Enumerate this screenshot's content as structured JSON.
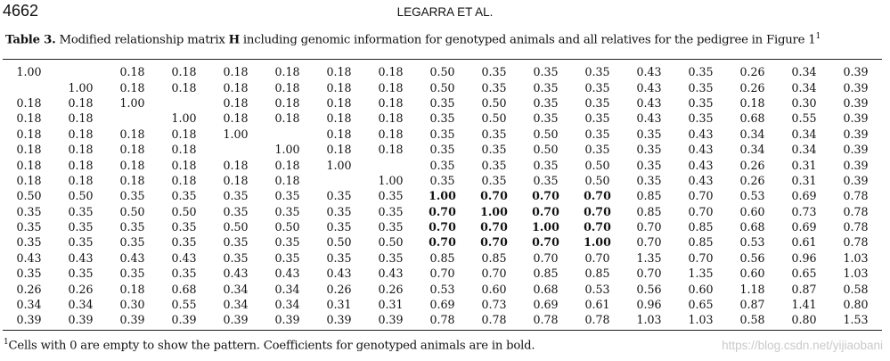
{
  "header": {
    "page_number": "4662",
    "running_head": "LEGARRA ET AL."
  },
  "caption": {
    "label": "Table 3.",
    "text_before": " Modified relationship matrix ",
    "matrix_symbol": "H",
    "text_after": " including genomic information for genotyped animals and all relatives for the pedigree in Figure 1",
    "footnote_mark": "1"
  },
  "matrix": {
    "rows": [
      [
        "1.00",
        "",
        "0.18",
        "0.18",
        "0.18",
        "0.18",
        "0.18",
        "0.18",
        "0.50",
        "0.35",
        "0.35",
        "0.35",
        "0.43",
        "0.35",
        "0.26",
        "0.34",
        "0.39"
      ],
      [
        "",
        "1.00",
        "0.18",
        "0.18",
        "0.18",
        "0.18",
        "0.18",
        "0.18",
        "0.50",
        "0.35",
        "0.35",
        "0.35",
        "0.43",
        "0.35",
        "0.26",
        "0.34",
        "0.39"
      ],
      [
        "0.18",
        "0.18",
        "1.00",
        "",
        "0.18",
        "0.18",
        "0.18",
        "0.18",
        "0.35",
        "0.50",
        "0.35",
        "0.35",
        "0.43",
        "0.35",
        "0.18",
        "0.30",
        "0.39"
      ],
      [
        "0.18",
        "0.18",
        "",
        "1.00",
        "0.18",
        "0.18",
        "0.18",
        "0.18",
        "0.35",
        "0.50",
        "0.35",
        "0.35",
        "0.43",
        "0.35",
        "0.68",
        "0.55",
        "0.39"
      ],
      [
        "0.18",
        "0.18",
        "0.18",
        "0.18",
        "1.00",
        "",
        "0.18",
        "0.18",
        "0.35",
        "0.35",
        "0.50",
        "0.35",
        "0.35",
        "0.43",
        "0.34",
        "0.34",
        "0.39"
      ],
      [
        "0.18",
        "0.18",
        "0.18",
        "0.18",
        "",
        "1.00",
        "0.18",
        "0.18",
        "0.35",
        "0.35",
        "0.50",
        "0.35",
        "0.35",
        "0.43",
        "0.34",
        "0.34",
        "0.39"
      ],
      [
        "0.18",
        "0.18",
        "0.18",
        "0.18",
        "0.18",
        "0.18",
        "1.00",
        "",
        "0.35",
        "0.35",
        "0.35",
        "0.50",
        "0.35",
        "0.43",
        "0.26",
        "0.31",
        "0.39"
      ],
      [
        "0.18",
        "0.18",
        "0.18",
        "0.18",
        "0.18",
        "0.18",
        "",
        "1.00",
        "0.35",
        "0.35",
        "0.35",
        "0.50",
        "0.35",
        "0.43",
        "0.26",
        "0.31",
        "0.39"
      ],
      [
        "0.50",
        "0.50",
        "0.35",
        "0.35",
        "0.35",
        "0.35",
        "0.35",
        "0.35",
        "1.00",
        "0.70",
        "0.70",
        "0.70",
        "0.85",
        "0.70",
        "0.53",
        "0.69",
        "0.78"
      ],
      [
        "0.35",
        "0.35",
        "0.50",
        "0.50",
        "0.35",
        "0.35",
        "0.35",
        "0.35",
        "0.70",
        "1.00",
        "0.70",
        "0.70",
        "0.85",
        "0.70",
        "0.60",
        "0.73",
        "0.78"
      ],
      [
        "0.35",
        "0.35",
        "0.35",
        "0.35",
        "0.50",
        "0.50",
        "0.35",
        "0.35",
        "0.70",
        "0.70",
        "1.00",
        "0.70",
        "0.70",
        "0.85",
        "0.68",
        "0.69",
        "0.78"
      ],
      [
        "0.35",
        "0.35",
        "0.35",
        "0.35",
        "0.35",
        "0.35",
        "0.50",
        "0.50",
        "0.70",
        "0.70",
        "0.70",
        "1.00",
        "0.70",
        "0.85",
        "0.53",
        "0.61",
        "0.78"
      ],
      [
        "0.43",
        "0.43",
        "0.43",
        "0.43",
        "0.35",
        "0.35",
        "0.35",
        "0.35",
        "0.85",
        "0.85",
        "0.70",
        "0.70",
        "1.35",
        "0.70",
        "0.56",
        "0.96",
        "1.03"
      ],
      [
        "0.35",
        "0.35",
        "0.35",
        "0.35",
        "0.43",
        "0.43",
        "0.43",
        "0.43",
        "0.70",
        "0.70",
        "0.85",
        "0.85",
        "0.70",
        "1.35",
        "0.60",
        "0.65",
        "1.03"
      ],
      [
        "0.26",
        "0.26",
        "0.18",
        "0.68",
        "0.34",
        "0.34",
        "0.26",
        "0.26",
        "0.53",
        "0.60",
        "0.68",
        "0.53",
        "0.56",
        "0.60",
        "1.18",
        "0.87",
        "0.58"
      ],
      [
        "0.34",
        "0.34",
        "0.30",
        "0.55",
        "0.34",
        "0.34",
        "0.31",
        "0.31",
        "0.69",
        "0.73",
        "0.69",
        "0.61",
        "0.96",
        "0.65",
        "0.87",
        "1.41",
        "0.80"
      ],
      [
        "0.39",
        "0.39",
        "0.39",
        "0.39",
        "0.39",
        "0.39",
        "0.39",
        "0.39",
        "0.78",
        "0.78",
        "0.78",
        "0.78",
        "1.03",
        "1.03",
        "0.58",
        "0.80",
        "1.53"
      ]
    ],
    "genotyped_indices": [
      8,
      9,
      10,
      11
    ]
  },
  "footnote": {
    "mark": "1",
    "text": "Cells with 0 are empty to show the pattern. Coefficients for genotyped animals are in bold."
  },
  "watermark": "https://blog.csdn.net/yijiaobani"
}
